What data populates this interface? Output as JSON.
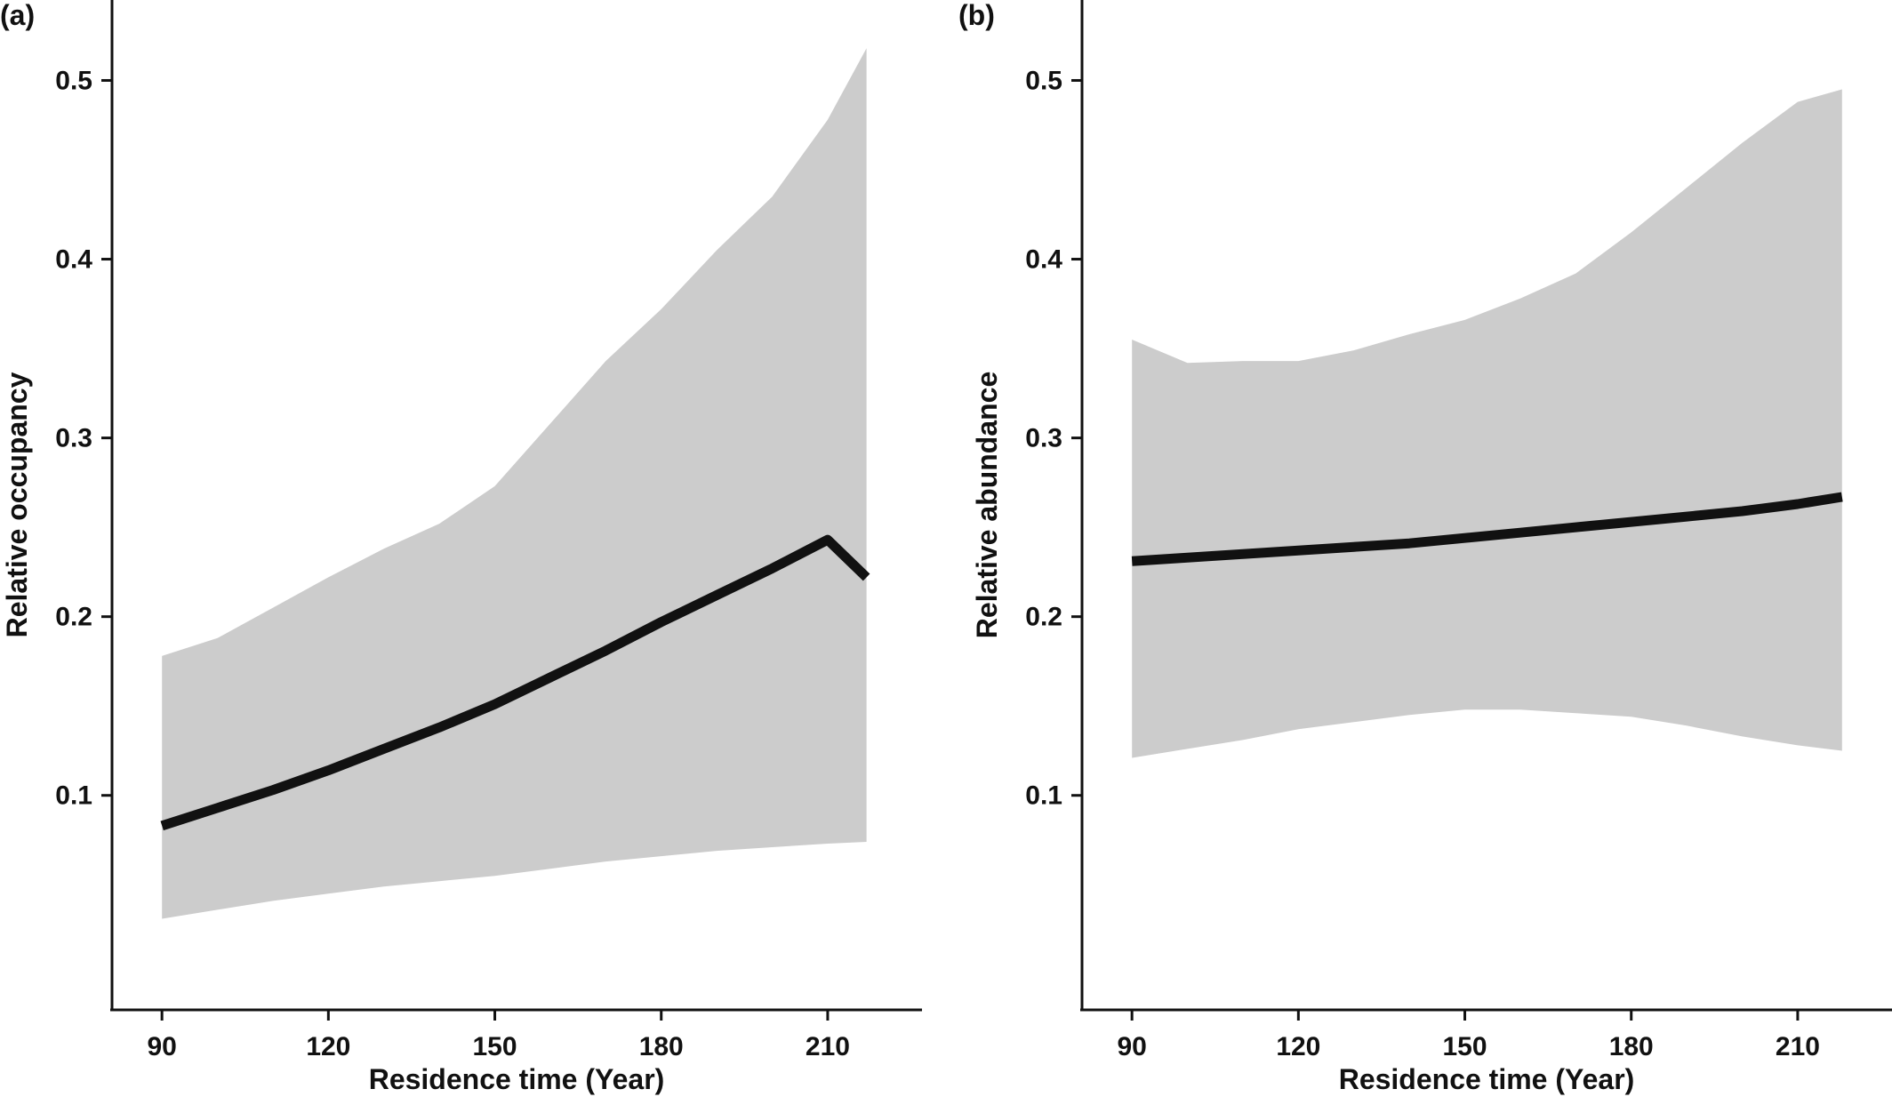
{
  "colors": {
    "band": "#cccccc",
    "line": "#111111",
    "axis": "#111111"
  },
  "chart_data": [
    {
      "type": "line",
      "panel_label": "(a)",
      "xlabel": "Residence time (Year)",
      "ylabel": "Relative occupancy",
      "xlim": [
        81,
        227
      ],
      "ylim": [
        -0.02,
        0.545
      ],
      "xticks": [
        90,
        120,
        150,
        180,
        210
      ],
      "yticks": [
        0.1,
        0.2,
        0.3,
        0.4,
        0.5
      ],
      "ytick_labels": [
        "0.1",
        "0.2",
        "0.3",
        "0.4",
        "0.5"
      ],
      "grid": false,
      "series": [
        {
          "x": [
            90,
            100,
            110,
            120,
            130,
            140,
            150,
            160,
            170,
            180,
            190,
            200,
            210,
            217
          ],
          "fit": [
            0.083,
            0.093,
            0.103,
            0.114,
            0.126,
            0.138,
            0.151,
            0.166,
            0.181,
            0.197,
            0.212,
            0.227,
            0.243,
            0.222
          ],
          "lower": [
            0.031,
            0.036,
            0.041,
            0.045,
            0.049,
            0.052,
            0.055,
            0.059,
            0.063,
            0.066,
            0.069,
            0.071,
            0.073,
            0.074
          ],
          "upper": [
            0.178,
            0.188,
            0.205,
            0.222,
            0.238,
            0.252,
            0.273,
            0.308,
            0.343,
            0.372,
            0.405,
            0.435,
            0.478,
            0.518
          ]
        }
      ]
    },
    {
      "type": "line",
      "panel_label": "(b)",
      "xlabel": "Residence time (Year)",
      "ylabel": "Relative abundance",
      "xlim": [
        81,
        227
      ],
      "ylim": [
        -0.02,
        0.545
      ],
      "xticks": [
        90,
        120,
        150,
        180,
        210
      ],
      "yticks": [
        0.1,
        0.2,
        0.3,
        0.4,
        0.5
      ],
      "ytick_labels": [
        "0.1",
        "0.2",
        "0.3",
        "0.4",
        "0.5"
      ],
      "grid": false,
      "series": [
        {
          "x": [
            90,
            100,
            110,
            120,
            130,
            140,
            150,
            160,
            170,
            180,
            190,
            200,
            210,
            218
          ],
          "fit": [
            0.231,
            0.233,
            0.235,
            0.237,
            0.239,
            0.241,
            0.244,
            0.247,
            0.25,
            0.253,
            0.256,
            0.259,
            0.263,
            0.267
          ],
          "lower": [
            0.121,
            0.126,
            0.131,
            0.137,
            0.141,
            0.145,
            0.148,
            0.148,
            0.146,
            0.144,
            0.139,
            0.133,
            0.128,
            0.125
          ],
          "upper": [
            0.355,
            0.342,
            0.343,
            0.343,
            0.349,
            0.358,
            0.366,
            0.378,
            0.392,
            0.415,
            0.44,
            0.465,
            0.488,
            0.495
          ]
        }
      ]
    }
  ]
}
